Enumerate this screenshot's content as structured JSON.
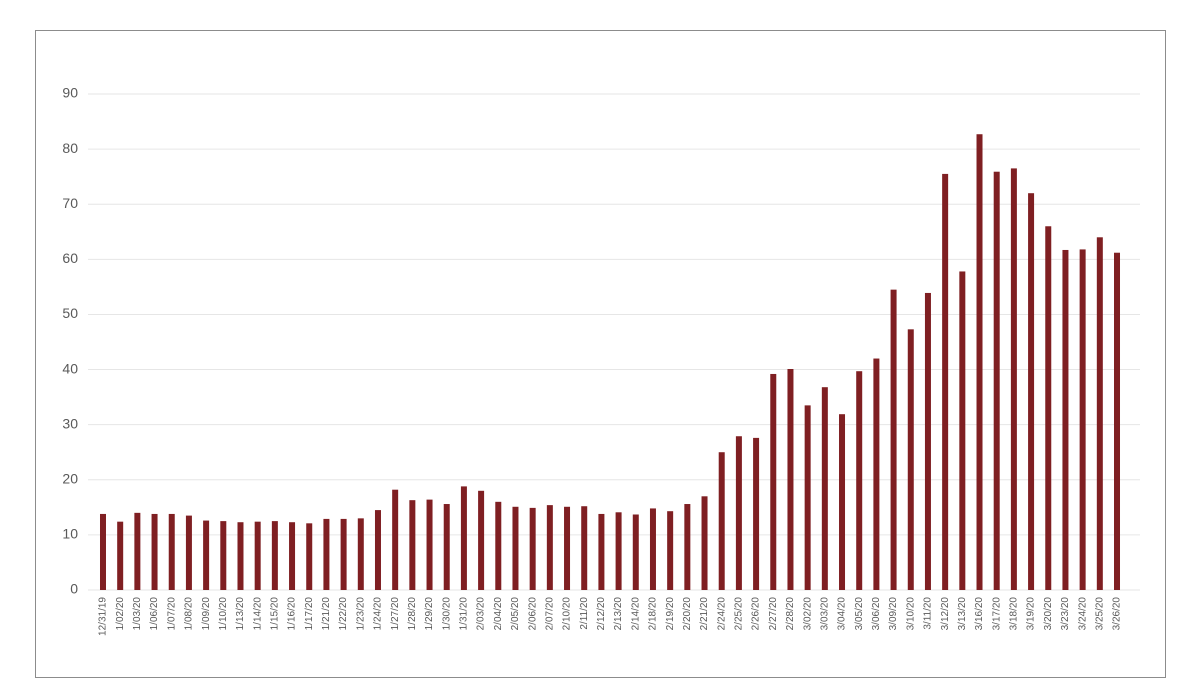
{
  "chart_data": {
    "type": "bar",
    "categories": [
      "12/31/19",
      "1/02/20",
      "1/03/20",
      "1/06/20",
      "1/07/20",
      "1/08/20",
      "1/09/20",
      "1/10/20",
      "1/13/20",
      "1/14/20",
      "1/15/20",
      "1/16/20",
      "1/17/20",
      "1/21/20",
      "1/22/20",
      "1/23/20",
      "1/24/20",
      "1/27/20",
      "1/28/20",
      "1/29/20",
      "1/30/20",
      "1/31/20",
      "2/03/20",
      "2/04/20",
      "2/05/20",
      "2/06/20",
      "2/07/20",
      "2/10/20",
      "2/11/20",
      "2/12/20",
      "2/13/20",
      "2/14/20",
      "2/18/20",
      "2/19/20",
      "2/20/20",
      "2/21/20",
      "2/24/20",
      "2/25/20",
      "2/26/20",
      "2/27/20",
      "2/28/20",
      "3/02/20",
      "3/03/20",
      "3/04/20",
      "3/05/20",
      "3/06/20",
      "3/09/20",
      "3/10/20",
      "3/11/20",
      "3/12/20",
      "3/13/20",
      "3/16/20",
      "3/17/20",
      "3/18/20",
      "3/19/20",
      "3/20/20",
      "3/23/20",
      "3/24/20",
      "3/25/20",
      "3/26/20"
    ],
    "values": [
      13.8,
      12.4,
      14.0,
      13.8,
      13.8,
      13.5,
      12.6,
      12.5,
      12.3,
      12.4,
      12.5,
      12.3,
      12.1,
      12.9,
      12.9,
      13.0,
      14.5,
      18.2,
      16.3,
      16.4,
      15.6,
      18.8,
      18.0,
      16.0,
      15.1,
      14.9,
      15.4,
      15.1,
      15.2,
      13.8,
      14.1,
      13.7,
      14.8,
      14.3,
      15.6,
      17.0,
      25.0,
      27.9,
      27.6,
      39.2,
      40.1,
      33.5,
      36.8,
      31.9,
      39.7,
      42.0,
      54.5,
      47.3,
      53.9,
      75.5,
      57.8,
      82.7,
      75.9,
      76.5,
      72.0,
      66.0,
      61.7,
      61.8,
      64.0,
      61.2
    ],
    "color": "#7f1f22",
    "ylim": [
      0,
      90
    ],
    "yticks": [
      0,
      10,
      20,
      30,
      40,
      50,
      60,
      70,
      80,
      90
    ],
    "grid": true
  }
}
